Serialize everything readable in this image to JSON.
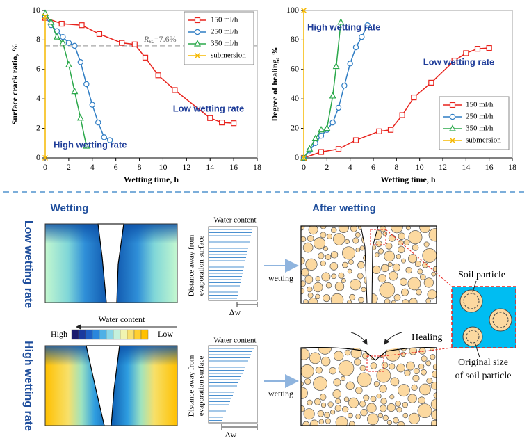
{
  "chart_data": [
    {
      "type": "line",
      "x_label": "Wetting time, h",
      "y_label": "Surface crack ratio, %",
      "xlim": [
        0,
        18
      ],
      "xticks": [
        0,
        2,
        4,
        6,
        8,
        10,
        12,
        14,
        16,
        18
      ],
      "ylim": [
        0,
        10
      ],
      "yticks": [
        0,
        2,
        4,
        6,
        8,
        10
      ],
      "legend": "upper-right",
      "series": [
        {
          "name": "150 ml/h",
          "color": "#e8221c",
          "marker": "square",
          "x": [
            0,
            1.4,
            3.1,
            4.6,
            6.5,
            7.6,
            8.5,
            9.6,
            11,
            14,
            15,
            16
          ],
          "values": [
            9.5,
            9.1,
            9.0,
            8.4,
            7.8,
            7.7,
            6.8,
            5.6,
            4.6,
            2.7,
            2.4,
            2.35
          ]
        },
        {
          "name": "250 ml/h",
          "color": "#2f7dc4",
          "marker": "circle",
          "x": [
            0,
            0.5,
            1,
            1.5,
            2,
            2.5,
            3,
            3.5,
            4,
            4.5,
            5,
            5.5
          ],
          "values": [
            9.6,
            9.0,
            8.6,
            8.2,
            7.8,
            7.6,
            6.5,
            5.0,
            3.6,
            2.4,
            1.4,
            1.2
          ]
        },
        {
          "name": "350 ml/h",
          "color": "#2aa84a",
          "marker": "triangle",
          "x": [
            0,
            0.5,
            1,
            1.5,
            2,
            2.5,
            3,
            3.5
          ],
          "values": [
            9.8,
            9.2,
            8.2,
            7.8,
            6.3,
            4.5,
            2.7,
            0.8
          ]
        },
        {
          "name": "submersion",
          "color": "#f5b800",
          "marker": "x",
          "x": [
            0,
            0
          ],
          "values": [
            9.6,
            0
          ]
        }
      ],
      "reference": {
        "value": 7.6,
        "color": "#a6a6a6",
        "label": {
          "symbol": "R",
          "subscript": "sc",
          "text": "=7.6%"
        }
      },
      "annotations": [
        "Low wetting rate",
        "High wetting rate"
      ]
    },
    {
      "type": "line",
      "x_label": "Wetting time, h",
      "y_label": "Degree of healing, %",
      "xlim": [
        0,
        18
      ],
      "xticks": [
        0,
        2,
        4,
        6,
        8,
        10,
        12,
        14,
        16,
        18
      ],
      "ylim": [
        0,
        100
      ],
      "yticks": [
        0,
        20,
        40,
        60,
        80,
        100
      ],
      "legend": "lower-right",
      "series": [
        {
          "name": "150 ml/h",
          "color": "#e8221c",
          "marker": "square",
          "x": [
            0,
            1.5,
            3,
            4.5,
            6.5,
            7.5,
            8.5,
            9.5,
            11,
            13,
            14,
            15,
            16
          ],
          "values": [
            0,
            4,
            6,
            12,
            18,
            19,
            29,
            41,
            51,
            66,
            71,
            74,
            74.5
          ]
        },
        {
          "name": "250 ml/h",
          "color": "#2f7dc4",
          "marker": "circle",
          "x": [
            0,
            0.5,
            1,
            1.5,
            2,
            2.5,
            3,
            3.5,
            4,
            4.5,
            5,
            5.5
          ],
          "values": [
            0,
            5,
            10,
            15,
            19,
            24,
            34,
            49,
            64,
            75,
            82,
            90
          ]
        },
        {
          "name": "350 ml/h",
          "color": "#2aa84a",
          "marker": "triangle",
          "x": [
            0,
            0.5,
            1,
            1.5,
            2,
            2.5,
            2.8,
            3.2
          ],
          "values": [
            0,
            6,
            13,
            19,
            20,
            42,
            62,
            92
          ]
        },
        {
          "name": "submersion",
          "color": "#f5b800",
          "marker": "x",
          "x": [
            0,
            0
          ],
          "values": [
            0,
            100
          ]
        }
      ],
      "annotations": [
        "High wetting rate",
        "Low wetting rate"
      ]
    }
  ],
  "diagram": {
    "row_labels": [
      "Low wetting rate",
      "High wetting rate"
    ],
    "column_titles": [
      "Wetting",
      "After wetting"
    ],
    "color_scale": {
      "title": "Water content",
      "high": "High",
      "low": "Low"
    },
    "profiles": [
      {
        "title": "Water content",
        "axis_label": [
          "Distance away from",
          "evaporation surface"
        ],
        "delta": "Δw"
      },
      {
        "title": "Water content",
        "axis_label": [
          "Distance away from",
          "evaporation surface"
        ],
        "delta": "Δw"
      }
    ],
    "arrows": [
      "wetting",
      "wetting"
    ],
    "healing": "Healing",
    "inset": {
      "soil_particle": "Soil particle",
      "original_size": [
        "Original size",
        "of soil particle"
      ]
    }
  }
}
